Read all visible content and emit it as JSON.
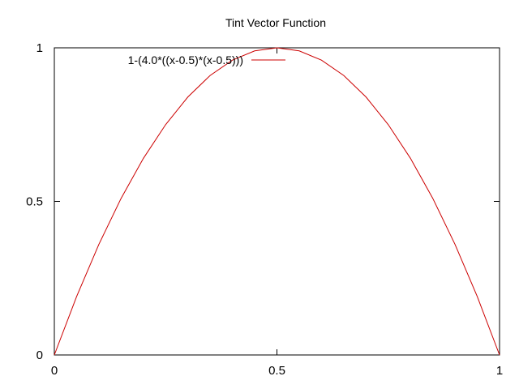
{
  "chart_data": {
    "type": "line",
    "title": "Tint Vector Function",
    "xlabel": "",
    "ylabel": "",
    "xlim": [
      0,
      1
    ],
    "ylim": [
      0,
      1
    ],
    "x_ticks": [
      0,
      0.5,
      1
    ],
    "x_tick_labels": [
      "0",
      "0.5",
      "1"
    ],
    "y_ticks": [
      0,
      0.5,
      1
    ],
    "y_tick_labels": [
      "0",
      "0.5",
      "1"
    ],
    "grid": false,
    "legend_position": "top-left",
    "series": [
      {
        "name": "1-(4.0*((x-0.5)*(x-0.5)))",
        "color": "#cc0000",
        "x": [
          0,
          0.05,
          0.1,
          0.15,
          0.2,
          0.25,
          0.3,
          0.35,
          0.4,
          0.45,
          0.5,
          0.55,
          0.6,
          0.65,
          0.7,
          0.75,
          0.8,
          0.85,
          0.9,
          0.95,
          1
        ],
        "y": [
          0,
          0.19,
          0.36,
          0.51,
          0.64,
          0.75,
          0.84,
          0.91,
          0.96,
          0.99,
          1,
          0.99,
          0.96,
          0.91,
          0.84,
          0.75,
          0.64,
          0.51,
          0.36,
          0.19,
          0
        ]
      }
    ]
  }
}
